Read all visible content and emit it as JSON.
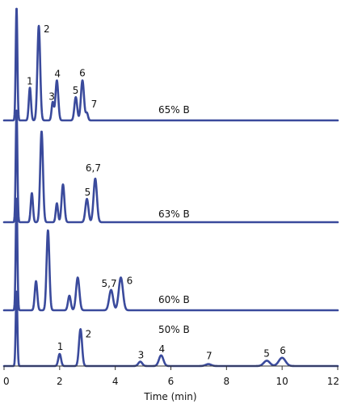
{
  "chart_data": {
    "type": "line",
    "title": "",
    "xlabel": "Time (min)",
    "ylabel": "",
    "xlim": [
      0,
      12
    ],
    "xticks": [
      0,
      2,
      4,
      6,
      8,
      10,
      12
    ],
    "grid": false,
    "legend": "none",
    "line_color": "#3a4a9c",
    "series": [
      {
        "name": "65% B",
        "peaks": [
          {
            "label": "",
            "t": 0.45,
            "h": 1.55,
            "w": 0.03
          },
          {
            "label": "1",
            "t": 0.93,
            "h": 0.45,
            "w": 0.04
          },
          {
            "label": "2",
            "t": 1.25,
            "h": 1.3,
            "w": 0.05
          },
          {
            "label": "3",
            "t": 1.75,
            "h": 0.25,
            "w": 0.04
          },
          {
            "label": "4",
            "t": 1.9,
            "h": 0.55,
            "w": 0.05
          },
          {
            "label": "5",
            "t": 2.58,
            "h": 0.32,
            "w": 0.05
          },
          {
            "label": "6",
            "t": 2.82,
            "h": 0.55,
            "w": 0.055
          },
          {
            "label": "7",
            "t": 2.98,
            "h": 0.1,
            "w": 0.04
          }
        ],
        "annotation": "65% B"
      },
      {
        "name": "63% B",
        "peaks": [
          {
            "label": "",
            "t": 0.45,
            "h": 1.55,
            "w": 0.03
          },
          {
            "label": "",
            "t": 1.0,
            "h": 0.4,
            "w": 0.04
          },
          {
            "label": "",
            "t": 1.35,
            "h": 1.25,
            "w": 0.05
          },
          {
            "label": "",
            "t": 1.9,
            "h": 0.26,
            "w": 0.04
          },
          {
            "label": "",
            "t": 2.12,
            "h": 0.52,
            "w": 0.05
          },
          {
            "label": "5",
            "t": 2.98,
            "h": 0.32,
            "w": 0.055
          },
          {
            "label": "6,7",
            "t": 3.28,
            "h": 0.6,
            "w": 0.06
          }
        ],
        "annotation": "63% B"
      },
      {
        "name": "60% B",
        "peaks": [
          {
            "label": "",
            "t": 0.45,
            "h": 1.55,
            "w": 0.03
          },
          {
            "label": "",
            "t": 1.15,
            "h": 0.4,
            "w": 0.045
          },
          {
            "label": "",
            "t": 1.58,
            "h": 1.1,
            "w": 0.05
          },
          {
            "label": "",
            "t": 2.35,
            "h": 0.2,
            "w": 0.05
          },
          {
            "label": "",
            "t": 2.65,
            "h": 0.45,
            "w": 0.06
          },
          {
            "label": "5,7",
            "t": 3.85,
            "h": 0.28,
            "w": 0.07
          },
          {
            "label": "6",
            "t": 4.2,
            "h": 0.45,
            "w": 0.075
          }
        ],
        "annotation": "60% B"
      },
      {
        "name": "50% B",
        "peaks": [
          {
            "label": "",
            "t": 0.45,
            "h": 1.55,
            "w": 0.03
          },
          {
            "label": "1",
            "t": 2.0,
            "h": 0.25,
            "w": 0.05
          },
          {
            "label": "2",
            "t": 2.75,
            "h": 0.76,
            "w": 0.055
          },
          {
            "label": "3",
            "t": 4.9,
            "h": 0.09,
            "w": 0.07
          },
          {
            "label": "4",
            "t": 5.65,
            "h": 0.22,
            "w": 0.08
          },
          {
            "label": "7",
            "t": 7.35,
            "h": 0.04,
            "w": 0.1
          },
          {
            "label": "5",
            "t": 9.45,
            "h": 0.11,
            "w": 0.11
          },
          {
            "label": "6",
            "t": 10.0,
            "h": 0.17,
            "w": 0.12
          }
        ],
        "annotation": "50% B"
      }
    ]
  }
}
